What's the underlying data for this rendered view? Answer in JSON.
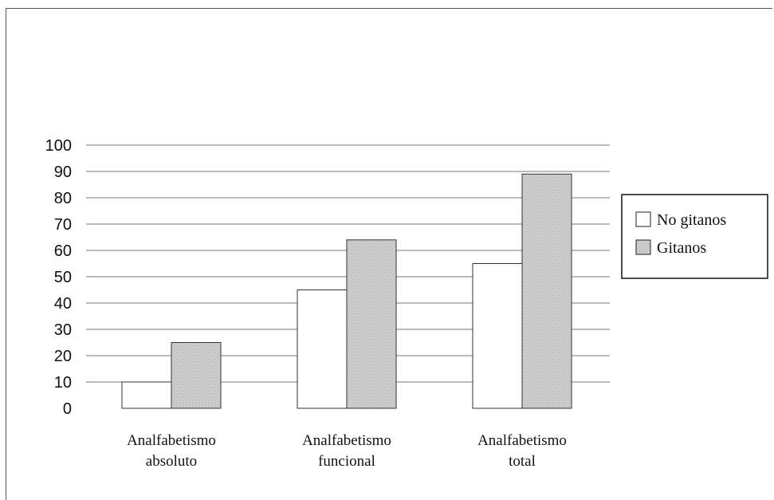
{
  "chart_data": {
    "type": "bar",
    "categories": [
      [
        "Analfabetismo",
        "absoluto"
      ],
      [
        "Analfabetismo",
        "funcional"
      ],
      [
        "Analfabetismo",
        "total"
      ]
    ],
    "series": [
      {
        "name": "No gitanos",
        "values": [
          10,
          45,
          55
        ],
        "color": "#ffffff"
      },
      {
        "name": "Gitanos",
        "values": [
          25,
          64,
          89
        ],
        "color": "#d0d0d0"
      }
    ],
    "ylim": [
      0,
      100
    ],
    "yticks": [
      "0",
      "10",
      "20",
      "30",
      "40",
      "50",
      "60",
      "70",
      "80",
      "90",
      "100"
    ],
    "grid": true,
    "legend_position": "right",
    "title": "",
    "xlabel": "",
    "ylabel": ""
  }
}
